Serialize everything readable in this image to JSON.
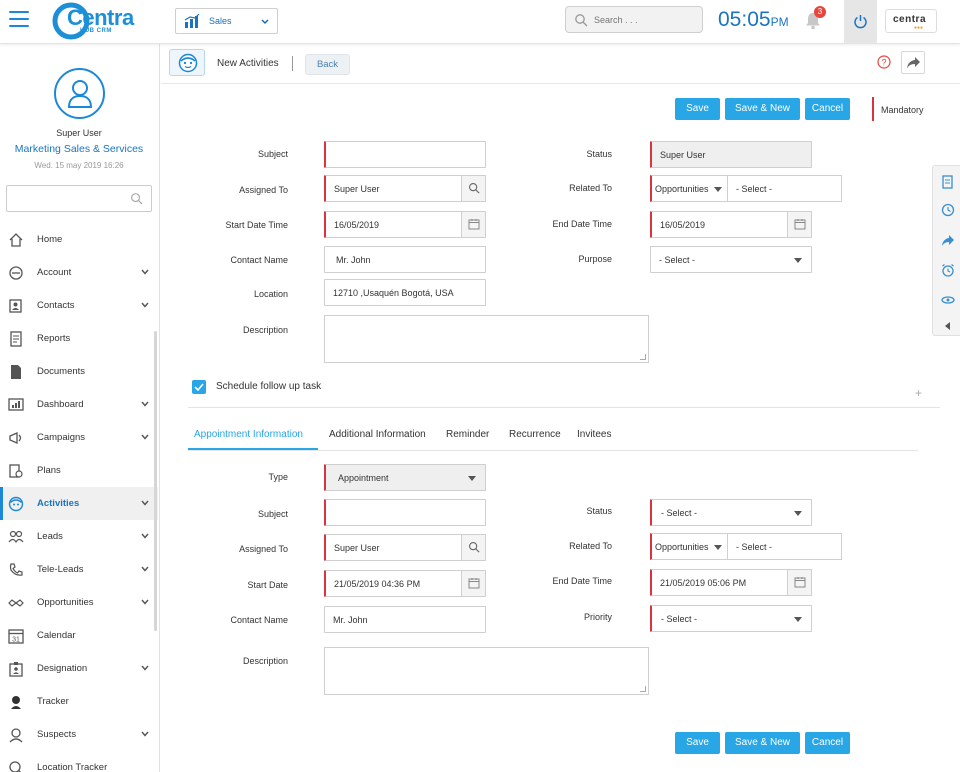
{
  "topbar": {
    "logo_main": "Centra",
    "logo_sub": "HUB CRM",
    "module": "Sales",
    "search_placeholder": "Search . . .",
    "time": "05:05",
    "ampm": "PM",
    "notifications": "3",
    "brand": "centra"
  },
  "sidebar": {
    "user_name": "Super User",
    "company": "Marketing Sales & Services",
    "date": "Wed. 15 may 2019 16:26",
    "search_value": "",
    "items": [
      {
        "label": "Home",
        "chevron": false
      },
      {
        "label": "Account",
        "chevron": true
      },
      {
        "label": "Contacts",
        "chevron": true
      },
      {
        "label": "Reports",
        "chevron": false
      },
      {
        "label": "Documents",
        "chevron": false
      },
      {
        "label": "Dashboard",
        "chevron": true
      },
      {
        "label": "Campaigns",
        "chevron": true
      },
      {
        "label": "Plans",
        "chevron": false
      },
      {
        "label": "Activities",
        "chevron": true
      },
      {
        "label": "Leads",
        "chevron": true
      },
      {
        "label": "Tele-Leads",
        "chevron": true
      },
      {
        "label": "Opportunities",
        "chevron": true
      },
      {
        "label": "Calendar",
        "chevron": false
      },
      {
        "label": "Designation",
        "chevron": true
      },
      {
        "label": "Tracker",
        "chevron": false
      },
      {
        "label": "Suspects",
        "chevron": true
      },
      {
        "label": "Location Tracker",
        "chevron": false
      }
    ]
  },
  "header": {
    "title": "New Activities",
    "back": "Back"
  },
  "actions": {
    "save": "Save",
    "save_new": "Save & New",
    "cancel": "Cancel",
    "mandatory": "Mandatory"
  },
  "form": {
    "subject_label": "Subject",
    "subject_value": "",
    "assigned_label": "Assigned To",
    "assigned_value": "Super User",
    "start_label": "Start Date Time",
    "start_value": "16/05/2019",
    "contact_label": "Contact Name",
    "contact_value": "Mr. John",
    "location_label": "Location",
    "location_value": "12710 ,Usaquén  Bogotá, USA",
    "description_label": "Description",
    "status_label": "Status",
    "status_value": "Super User",
    "related_label": "Related To",
    "related_type": "Opportunities",
    "related_value": "- Select -",
    "end_label": "End Date Time",
    "end_value": "16/05/2019",
    "purpose_label": "Purpose",
    "purpose_value": "- Select -"
  },
  "followup": {
    "label": "Schedule follow up task",
    "checked": true
  },
  "tabs": [
    "Appointment Information",
    "Additional Information",
    "Reminder",
    "Recurrence",
    "Invitees"
  ],
  "appointment": {
    "type_label": "Type",
    "type_value": "Appointment",
    "subject_label": "Subject",
    "subject_value": "",
    "assigned_label": "Assigned To",
    "assigned_value": "Super User",
    "start_label": "Start Date",
    "start_value": "21/05/2019 04:36 PM",
    "contact_label": "Contact Name",
    "contact_value": "Mr. John",
    "description_label": "Description",
    "status_label": "Status",
    "status_value": "- Select -",
    "related_label": "Related To",
    "related_type": "Opportunities",
    "related_value": "- Select -",
    "end_label": "End Date Time",
    "end_value": "21/05/2019 05:06 PM",
    "priority_label": "Priority",
    "priority_value": "- Select -"
  },
  "colors": {
    "primary": "#29a6e6",
    "brand_blue": "#1a74c2",
    "required": "#d8343f"
  }
}
